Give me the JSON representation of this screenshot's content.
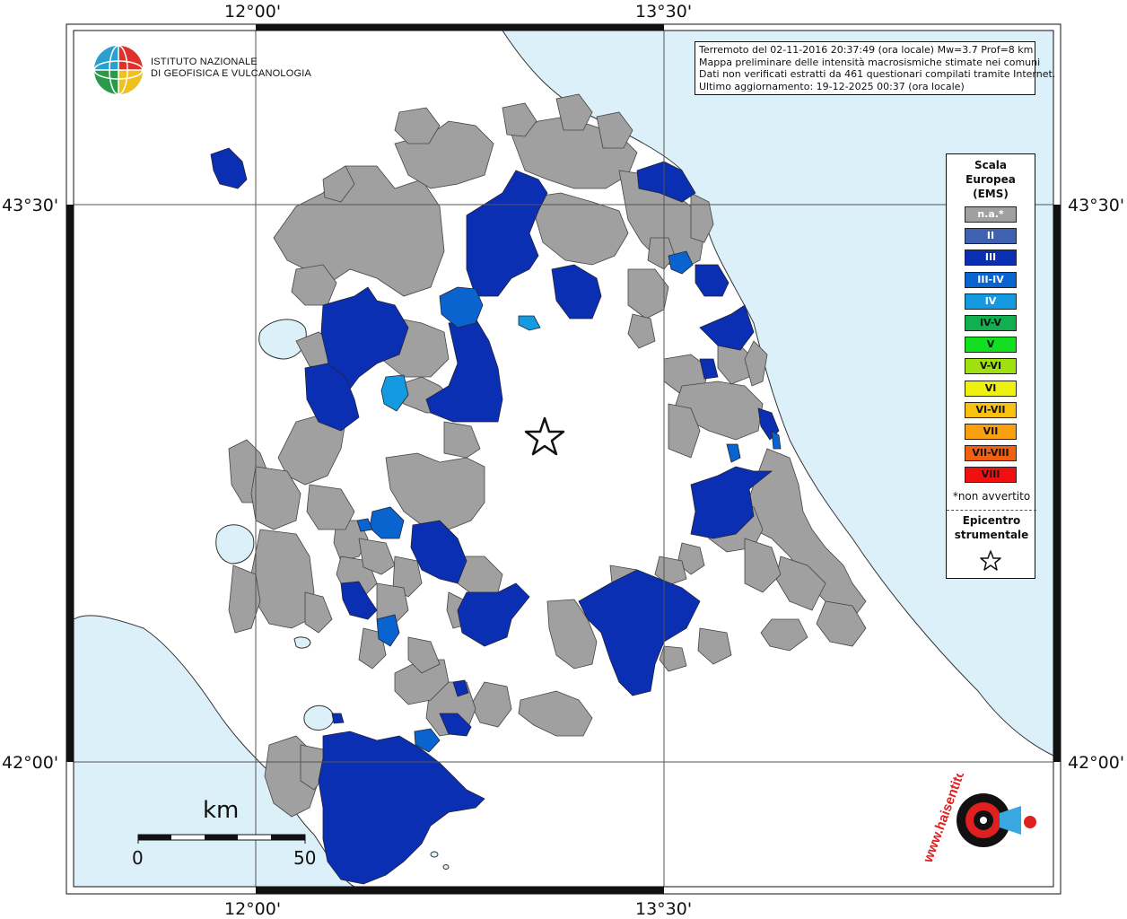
{
  "coords": {
    "top": [
      "12°00'",
      "13°30'"
    ],
    "bottom": [
      "12°00'",
      "13°30'"
    ],
    "left": [
      "43°30'",
      "42°00'"
    ],
    "right": [
      "43°30'",
      "42°00'"
    ]
  },
  "info_box": {
    "lines": [
      "Terremoto del 02-11-2016 20:37:49 (ora locale) Mw=3.7 Prof=8 km",
      "Mappa preliminare delle intensità macrosismiche stimate nei comuni",
      "Dati non verificati estratti da 461 questionari compilati tramite Internet.",
      "Ultimo aggiornamento: 19-12-2025 00:37 (ora locale)"
    ]
  },
  "logo": {
    "line1": "ISTITUTO NAZIONALE",
    "line2": "DI GEOFISICA E VULCANOLOGIA"
  },
  "legend": {
    "title_lines": [
      "Scala",
      "Europea",
      "(EMS)"
    ],
    "items": [
      {
        "label": "n.a.*",
        "color": "#a0a0a0",
        "text_color": "#ffffff"
      },
      {
        "label": "II",
        "color": "#4060b0",
        "text_color": "#ffffff"
      },
      {
        "label": "III",
        "color": "#0a2fb3",
        "text_color": "#ffffff"
      },
      {
        "label": "III-IV",
        "color": "#0a64d0",
        "text_color": "#ffffff"
      },
      {
        "label": "IV",
        "color": "#139ae0",
        "text_color": "#ffffff"
      },
      {
        "label": "IV-V",
        "color": "#10b050",
        "text_color": "#111111"
      },
      {
        "label": "V",
        "color": "#10e020",
        "text_color": "#111111"
      },
      {
        "label": "V-VI",
        "color": "#a0e010",
        "text_color": "#111111"
      },
      {
        "label": "VI",
        "color": "#f0f010",
        "text_color": "#111111"
      },
      {
        "label": "VI-VII",
        "color": "#f8c010",
        "text_color": "#111111"
      },
      {
        "label": "VII",
        "color": "#f8a010",
        "text_color": "#111111"
      },
      {
        "label": "VII-VIII",
        "color": "#f06010",
        "text_color": "#111111"
      },
      {
        "label": "VIII",
        "color": "#f01010",
        "text_color": "#111111"
      }
    ],
    "not_felt_note": "*non avvertito",
    "epicenter_lines": [
      "Epicentro",
      "strumentale"
    ]
  },
  "scale_bar": {
    "unit": "km",
    "start": "0",
    "end": "50"
  },
  "colors": {
    "sea": "#dcf0fa",
    "land": "#ffffff",
    "na": "#a0a0a0",
    "intensity_iii": "#0a2fb3",
    "intensity_iii_iv": "#0a64d0",
    "intensity_iv": "#139ae0"
  },
  "icons": {
    "epicenter": "star-icon",
    "logo": "ingv-globe-logo",
    "brand": "hai-sentito-il-terremoto-logo"
  },
  "brand_logo": {
    "text": "www.haisentitoilterremoto.it"
  }
}
